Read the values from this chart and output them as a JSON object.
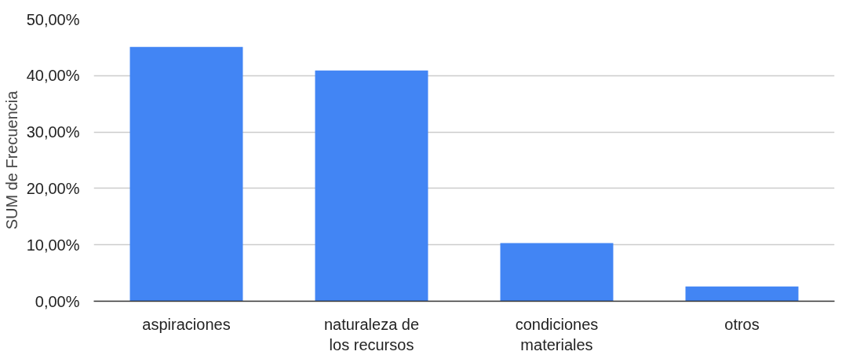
{
  "chart_data": {
    "type": "bar",
    "ylabel": "SUM de Frecuencia",
    "categories": [
      "aspiraciones",
      "naturaleza de los recursos",
      "condiciones materiales",
      "otros"
    ],
    "values": [
      45.1,
      40.9,
      10.3,
      2.6
    ],
    "color": "#4285f4",
    "ylim": [
      0,
      50
    ],
    "yticks": [
      {
        "value": 0,
        "label": "0,00%"
      },
      {
        "value": 10,
        "label": "10,00%"
      },
      {
        "value": 20,
        "label": "20,00%"
      },
      {
        "value": 30,
        "label": "30,00%"
      },
      {
        "value": 40,
        "label": "40,00%"
      },
      {
        "value": 50,
        "label": "50,00%"
      }
    ],
    "grid": "y"
  }
}
